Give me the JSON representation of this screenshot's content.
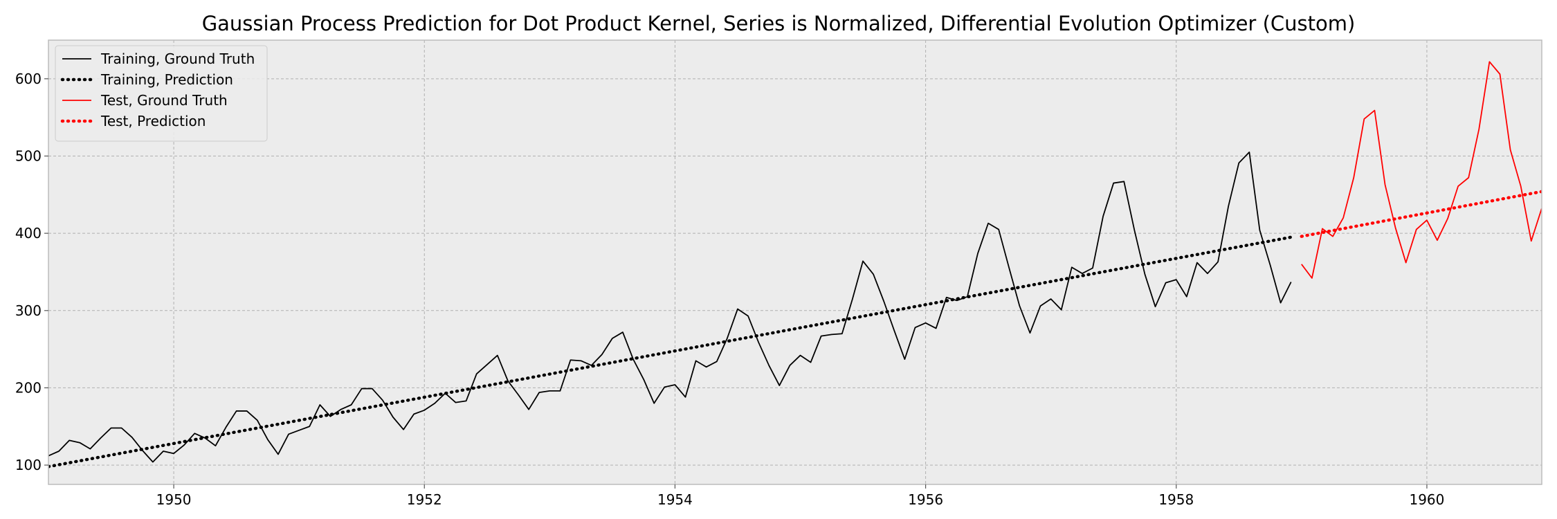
{
  "chart_data": {
    "type": "line",
    "title": "Gaussian Process Prediction for Dot Product Kernel, Series is Normalized, Differential Evolution Optimizer (Custom)",
    "xlabel": "",
    "ylabel": "",
    "xlim": [
      1949.0,
      1960.917
    ],
    "ylim": [
      75,
      650
    ],
    "x_ticks": [
      1950,
      1952,
      1954,
      1956,
      1958,
      1960
    ],
    "x_tick_labels": [
      "1950",
      "1952",
      "1954",
      "1956",
      "1958",
      "1960"
    ],
    "y_ticks": [
      100,
      200,
      300,
      400,
      500,
      600
    ],
    "y_tick_labels": [
      "100",
      "200",
      "300",
      "400",
      "500",
      "600"
    ],
    "grid": true,
    "legend_position": "upper-left",
    "x_start": 1949.0,
    "x_step": 0.08333,
    "series": [
      {
        "name": "Training, Ground Truth",
        "color": "#000000",
        "style": "solid",
        "start_index": 0,
        "values": [
          112,
          118,
          132,
          129,
          121,
          135,
          148,
          148,
          136,
          119,
          104,
          118,
          115,
          126,
          141,
          135,
          125,
          149,
          170,
          170,
          158,
          133,
          114,
          140,
          145,
          150,
          178,
          163,
          172,
          178,
          199,
          199,
          184,
          162,
          146,
          166,
          171,
          180,
          193,
          181,
          183,
          218,
          230,
          242,
          209,
          191,
          172,
          194,
          196,
          196,
          236,
          235,
          229,
          243,
          264,
          272,
          237,
          211,
          180,
          201,
          204,
          188,
          235,
          227,
          234,
          264,
          302,
          293,
          259,
          229,
          203,
          229,
          242,
          233,
          267,
          269,
          270,
          315,
          364,
          347,
          312,
          274,
          237,
          278,
          284,
          277,
          317,
          313,
          318,
          374,
          413,
          405,
          355,
          306,
          271,
          306,
          315,
          301,
          356,
          348,
          355,
          422,
          465,
          467,
          404,
          347,
          305,
          336,
          340,
          318,
          362,
          348,
          363,
          435,
          491,
          505,
          404,
          359,
          310,
          337
        ]
      },
      {
        "name": "Training, Prediction",
        "color": "#000000",
        "style": "dotted",
        "start_index": 0,
        "line_start": 98,
        "line_end": 395,
        "count": 120
      },
      {
        "name": "Test, Ground Truth",
        "color": "#ff0000",
        "style": "solid",
        "start_index": 120,
        "values": [
          360,
          342,
          406,
          396,
          420,
          472,
          548,
          559,
          463,
          407,
          362,
          405,
          417,
          391,
          419,
          461,
          472,
          535,
          622,
          606,
          508,
          461,
          390,
          432
        ]
      },
      {
        "name": "Test, Prediction",
        "color": "#ff0000",
        "style": "dotted",
        "start_index": 120,
        "line_start": 396,
        "line_end": 454,
        "count": 24
      }
    ],
    "colors": {
      "plot_background": "#ececec",
      "grid": "#b0b0b0",
      "frame": "#bcbcbc",
      "figure_background": "#ffffff"
    }
  }
}
